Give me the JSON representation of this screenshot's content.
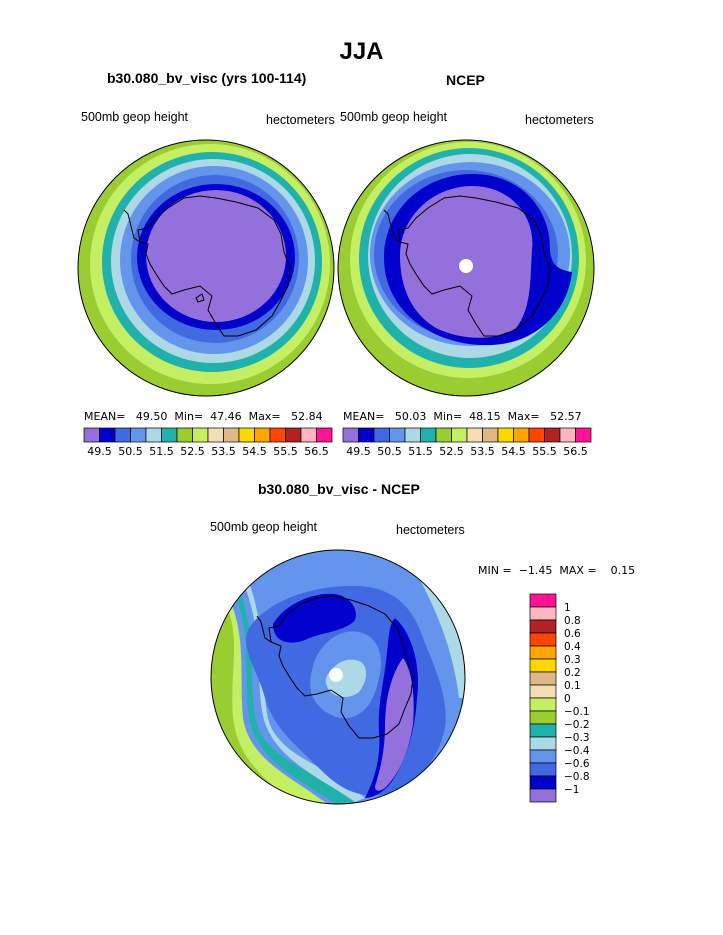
{
  "title": "JJA",
  "colors": {
    "levels": [
      "#9370db",
      "#0000cd",
      "#4169e1",
      "#6495ed",
      "#add8e6",
      "#20b2aa",
      "#9acd32",
      "#c5ef62",
      "#f5deb3",
      "#deb887",
      "#ffd700",
      "#ffa500",
      "#ff4500",
      "#b22222",
      "#ffb6c1",
      "#ff1493"
    ],
    "coast": "#000000",
    "pole": "#ffffff"
  },
  "chart_data": [
    {
      "type": "heatmap",
      "projection": "south-polar-stereographic",
      "title": "b30.080_bv_visc (yrs 100-114)",
      "left_label": "500mb geop height",
      "right_label": "hectometers",
      "stats": {
        "mean_label": "MEAN=",
        "mean": "49.50",
        "min_label": "Min=",
        "min": "47.46",
        "max_label": "Max=",
        "max": "52.84"
      },
      "contour_levels": [
        49.5,
        50,
        50.5,
        51,
        51.5,
        52,
        52.5,
        53,
        53.5,
        54,
        54.5,
        55,
        55.5,
        56,
        56.5
      ],
      "colorbar_ticks": [
        "49.5",
        "50.5",
        "51.5",
        "52.5",
        "53.5",
        "54.5",
        "55.5",
        "56.5"
      ]
    },
    {
      "type": "heatmap",
      "projection": "south-polar-stereographic",
      "title": "NCEP",
      "left_label": "500mb geop height",
      "right_label": "hectometers",
      "stats": {
        "mean_label": "MEAN=",
        "mean": "50.03",
        "min_label": "Min=",
        "min": "48.15",
        "max_label": "Max=",
        "max": "52.57"
      },
      "contour_levels": [
        49.5,
        50,
        50.5,
        51,
        51.5,
        52,
        52.5,
        53,
        53.5,
        54,
        54.5,
        55,
        55.5,
        56,
        56.5
      ],
      "colorbar_ticks": [
        "49.5",
        "50.5",
        "51.5",
        "52.5",
        "53.5",
        "54.5",
        "55.5",
        "56.5"
      ]
    },
    {
      "type": "heatmap",
      "projection": "south-polar-stereographic",
      "title": "b30.080_bv_visc - NCEP",
      "left_label": "500mb geop height",
      "right_label": "hectometers",
      "stats": {
        "min_label": "MIN =",
        "min": "−1.45",
        "max_label": "MAX =",
        "max": "0.15"
      },
      "contour_levels": [
        -1,
        -0.8,
        -0.6,
        -0.4,
        -0.3,
        -0.2,
        -0.1,
        0,
        0.1,
        0.2,
        0.3,
        0.4,
        0.6,
        0.8,
        1
      ],
      "colorbar_ticks": [
        "1",
        "0.8",
        "0.6",
        "0.4",
        "0.3",
        "0.2",
        "0.1",
        "0",
        "−0.1",
        "−0.2",
        "−0.3",
        "−0.4",
        "−0.6",
        "−0.8",
        "−1"
      ]
    }
  ]
}
